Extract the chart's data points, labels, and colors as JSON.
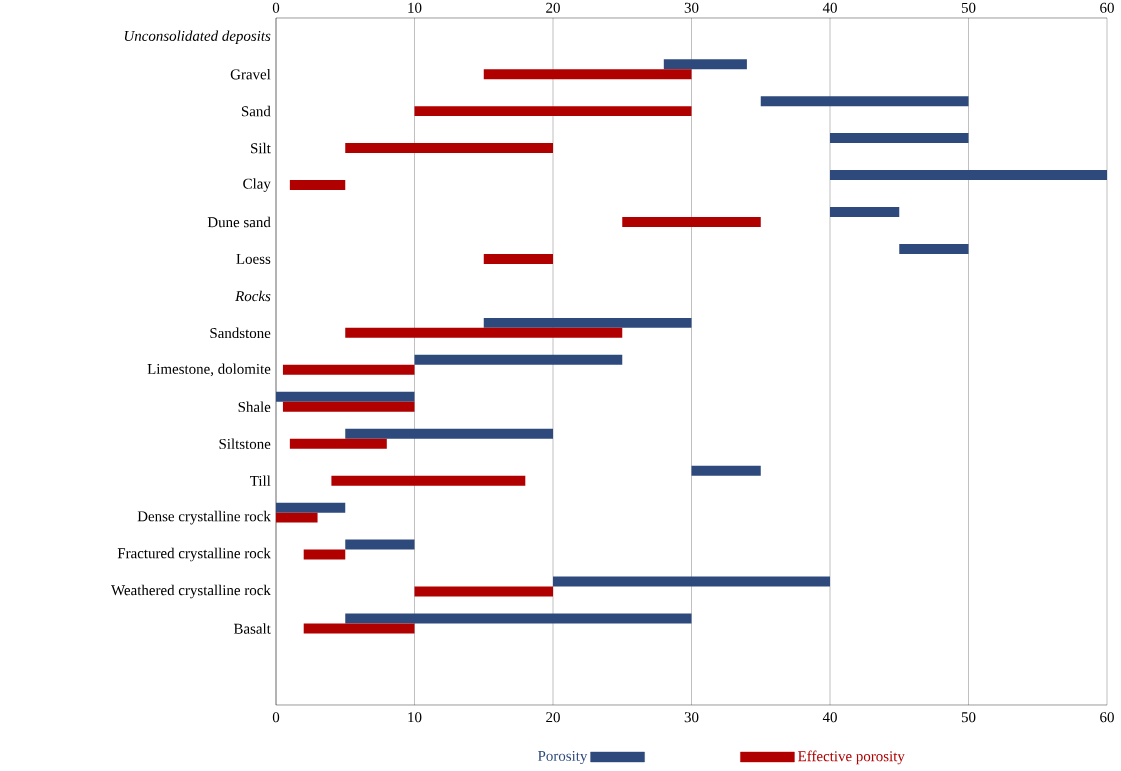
{
  "chart_data": {
    "type": "bar",
    "orientation": "horizontal",
    "categories": [
      "Unconsolidated deposits",
      "Gravel",
      "Sand",
      "Silt",
      "Clay",
      "Dune sand",
      "Loess",
      "Rocks",
      "Sandstone",
      "Limestone, dolomite",
      "Shale",
      "Siltstone",
      "Till",
      "Dense crystalline rock",
      "Fractured crystalline rock",
      "Weathered crystalline rock",
      "Basalt"
    ],
    "series": [
      {
        "name": "Porosity",
        "color": "#2e4a7c",
        "base": [
          null,
          28,
          35,
          40,
          40,
          40,
          45,
          null,
          15,
          10,
          0,
          5,
          30,
          0,
          5,
          20,
          5
        ],
        "values": [
          null,
          6,
          15,
          10,
          20,
          5,
          5,
          null,
          15,
          15,
          10,
          15,
          5,
          5,
          5,
          20,
          25
        ]
      },
      {
        "name": "Effective porosity",
        "color": "#b00000",
        "base": [
          null,
          15,
          10,
          5,
          1,
          25,
          15,
          null,
          5,
          0.5,
          0.5,
          1,
          4,
          0,
          2,
          10,
          2
        ],
        "values": [
          null,
          15,
          20,
          15,
          4,
          10,
          5,
          null,
          20,
          9.5,
          9.5,
          7,
          14,
          3,
          3,
          10,
          8
        ]
      }
    ],
    "xlim": [
      0,
      60
    ],
    "xticks": [
      0,
      10,
      20,
      30,
      40,
      50,
      60
    ],
    "x2lim": [
      0,
      60
    ],
    "x2ticks": [
      0,
      10,
      20,
      30,
      40,
      50,
      60
    ],
    "grid": "x",
    "legend": "bottom"
  }
}
